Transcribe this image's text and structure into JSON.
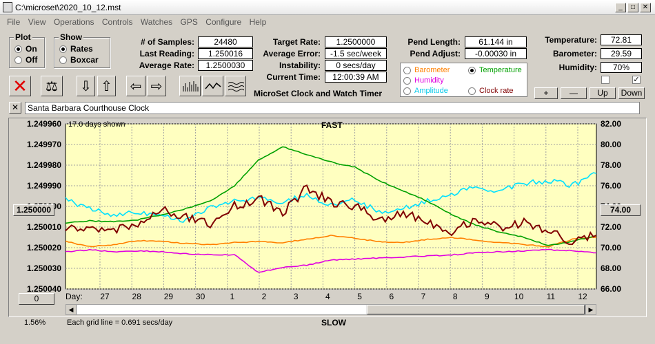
{
  "window": {
    "title": "C:\\microset\\2020_10_12.mst"
  },
  "menu": [
    "File",
    "View",
    "Operations",
    "Controls",
    "Watches",
    "GPS",
    "Configure",
    "Help"
  ],
  "plot_group": {
    "title": "Plot",
    "on": "On",
    "off": "Off",
    "selected": "On"
  },
  "show_group": {
    "title": "Show",
    "rates": "Rates",
    "boxcar": "Boxcar",
    "selected": "Rates"
  },
  "stats": {
    "samples_label": "# of Samples:",
    "samples": "24480",
    "last_label": "Last Reading:",
    "last": "1.250016",
    "avg_label": "Average Rate:",
    "avg": "1.2500030",
    "target_label": "Target Rate:",
    "target": "1.2500000",
    "avgerr_label": "Average Error:",
    "avgerr": "-1.5 sec/week",
    "instab_label": "Instability:",
    "instab": "0 secs/day",
    "time_label": "Current Time:",
    "time": "12:00:39 AM",
    "pendlen_label": "Pend Length:",
    "pendlen": "61.144 in",
    "pendadj_label": "Pend Adjust:",
    "pendadj": "-0.00030 in",
    "temp_label": "Temperature:",
    "temp": "72.81",
    "baro_label": "Barometer:",
    "baro": "29.59",
    "hum_label": "Humidity:",
    "hum": "70%"
  },
  "app_caption": "MicroSet Clock and Watch Timer",
  "overlay_options": {
    "barometer": "Barometer",
    "temperature": "Temperature",
    "humidity": "Humidity",
    "amplitude": "Amplitude",
    "clockrate": "Clock rate",
    "selected": "Temperature"
  },
  "adjust_buttons": {
    "plus": "+",
    "minus": "—",
    "up": "Up",
    "down": "Down"
  },
  "clock_name": "Santa Barbara Courthouse Clock",
  "chart_labels": {
    "days_shown": "17.0 days shown",
    "fast": "FAST",
    "slow": "SLOW",
    "grid_note": "Each grid line = 0.691 secs/day",
    "percent": "1.56%",
    "left_button": "1.250000",
    "right_button": "74.00",
    "zero_button": "0",
    "day_label": "Day:"
  },
  "colors": {
    "plot_bg": "#ffffc0",
    "rate": "#800000",
    "temperature": "#00a000",
    "amplitude": "#00e0ff",
    "barometer": "#ff8000",
    "humidity": "#e000e0"
  },
  "chart_data": {
    "type": "line",
    "x_ticks": [
      "27",
      "28",
      "29",
      "30",
      "1",
      "2",
      "3",
      "4",
      "5",
      "6",
      "7",
      "8",
      "9",
      "10",
      "11",
      "12"
    ],
    "y_left_ticks": [
      "1.249960",
      "1.249970",
      "1.249980",
      "1.249990",
      "1.250000",
      "1.250010",
      "1.250020",
      "1.250030",
      "1.250040"
    ],
    "y_left_range": [
      1.24996,
      1.25004
    ],
    "y_left_note": "inverted (FAST at top)",
    "y_right_ticks": [
      "82.00",
      "80.00",
      "78.00",
      "76.00",
      "74.00",
      "72.00",
      "70.00",
      "68.00",
      "66.00"
    ],
    "y_right_range": [
      66,
      82
    ],
    "grid": true,
    "series": [
      {
        "name": "Clock rate",
        "axis": "left",
        "values": [
          1.25001,
          1.250012,
          1.250011,
          1.250008,
          1.250002,
          1.250005,
          1.250009,
          1.25,
          1.249996,
          1.250003,
          1.249991,
          1.249998,
          1.25,
          1.250006,
          1.250004,
          1.250007,
          1.250012,
          1.250006,
          1.25001,
          1.250008,
          1.250012,
          1.250018,
          1.250014
        ]
      },
      {
        "name": "Temperature",
        "axis": "right",
        "values": [
          72.4,
          72.6,
          72.5,
          72.7,
          73.2,
          73.8,
          74.5,
          76.0,
          78.5,
          79.8,
          79.0,
          78.3,
          77.8,
          76.5,
          75.5,
          74.5,
          73.2,
          72.2,
          71.5,
          71.0,
          70.2,
          70.6,
          71.2
        ]
      },
      {
        "name": "Amplitude",
        "axis": "right",
        "values": [
          74.6,
          73.8,
          73.2,
          73.5,
          73.0,
          72.6,
          74.0,
          74.5,
          74.8,
          74.5,
          75.0,
          74.2,
          74.6,
          73.5,
          73.8,
          74.5,
          75.2,
          75.8,
          75.5,
          76.2,
          76.5,
          76.0,
          77.2
        ]
      },
      {
        "name": "Barometer",
        "axis": "right",
        "values": [
          70.6,
          70.1,
          70.3,
          70.7,
          70.6,
          70.4,
          70.3,
          70.5,
          70.6,
          70.5,
          70.8,
          71.2,
          70.9,
          70.6,
          70.5,
          70.8,
          71.0,
          70.7,
          70.5,
          70.3,
          70.1,
          70.8,
          71.0
        ]
      },
      {
        "name": "Humidity",
        "axis": "right",
        "values": [
          69.6,
          69.8,
          69.6,
          69.7,
          69.6,
          69.4,
          69.3,
          69.3,
          67.6,
          68.1,
          68.3,
          68.8,
          68.9,
          69.0,
          69.1,
          69.2,
          69.3,
          69.5,
          69.6,
          69.7,
          69.8,
          69.7,
          69.5
        ]
      }
    ]
  }
}
